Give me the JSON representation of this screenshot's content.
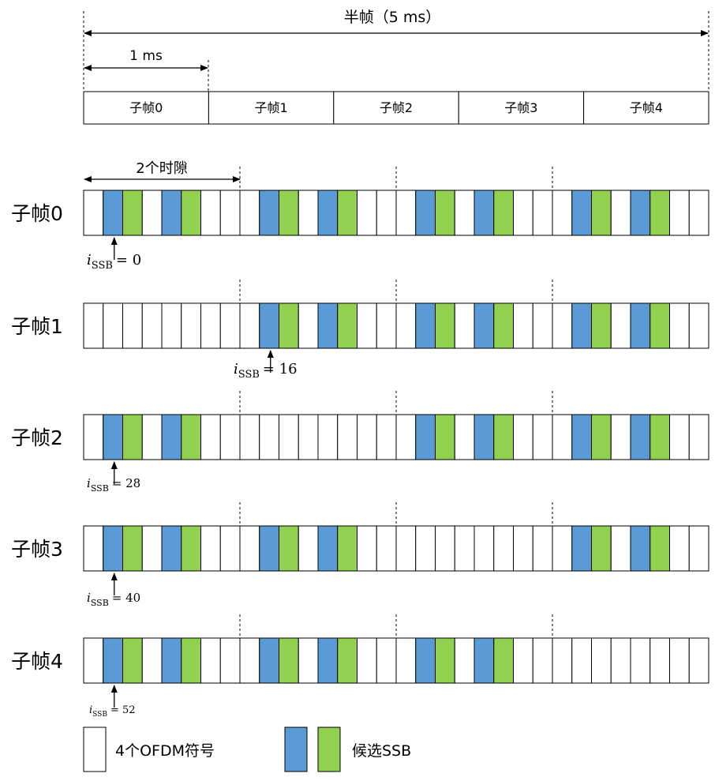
{
  "colors": {
    "blue": "#5B9BD5",
    "green": "#92D050",
    "white": "#ffffff",
    "line": "#000000"
  },
  "half_frame_label": "半帧（5 ms）",
  "one_ms_label": "1 ms",
  "two_slot_label": "2个时隙",
  "subframe_bar": [
    "子帧0",
    "子帧1",
    "子帧2",
    "子帧3",
    "子帧4"
  ],
  "rows": [
    {
      "label": "子帧0",
      "cells": "WBGWBGWWWBGWBGWWWBGWBGWWWBGWBGWW",
      "issb_prefix": "i",
      "issb_sub": "SSB",
      "issb_value": "= 0"
    },
    {
      "label": "子帧1",
      "cells": "WWWWWWWWWBGWBGWWWBGWBGWWWBGWBGWW",
      "issb_prefix": "i",
      "issb_sub": "SSB",
      "issb_value": "= 16"
    },
    {
      "label": "子帧2",
      "cells": "WBGWBGWWWWWWWWWWWBGWBGWWWBGWBGWW",
      "issb_prefix": "i",
      "issb_sub": "SSB",
      "issb_value": "= 28"
    },
    {
      "label": "子帧3",
      "cells": "WBGWBGWWWBGWBGWWWWWWWWWWWBGWBGWW",
      "issb_prefix": "i",
      "issb_sub": "SSB",
      "issb_value": "= 40"
    },
    {
      "label": "子帧4",
      "cells": "WBGWBGWWWBGWBGWWWBGWBGWWWWWWWWWW",
      "issb_prefix": "i",
      "issb_sub": "SSB",
      "issb_value": "= 52"
    }
  ],
  "legend": {
    "ofdm_label": "4个OFDM符号",
    "ssb_label": "候选SSB"
  }
}
